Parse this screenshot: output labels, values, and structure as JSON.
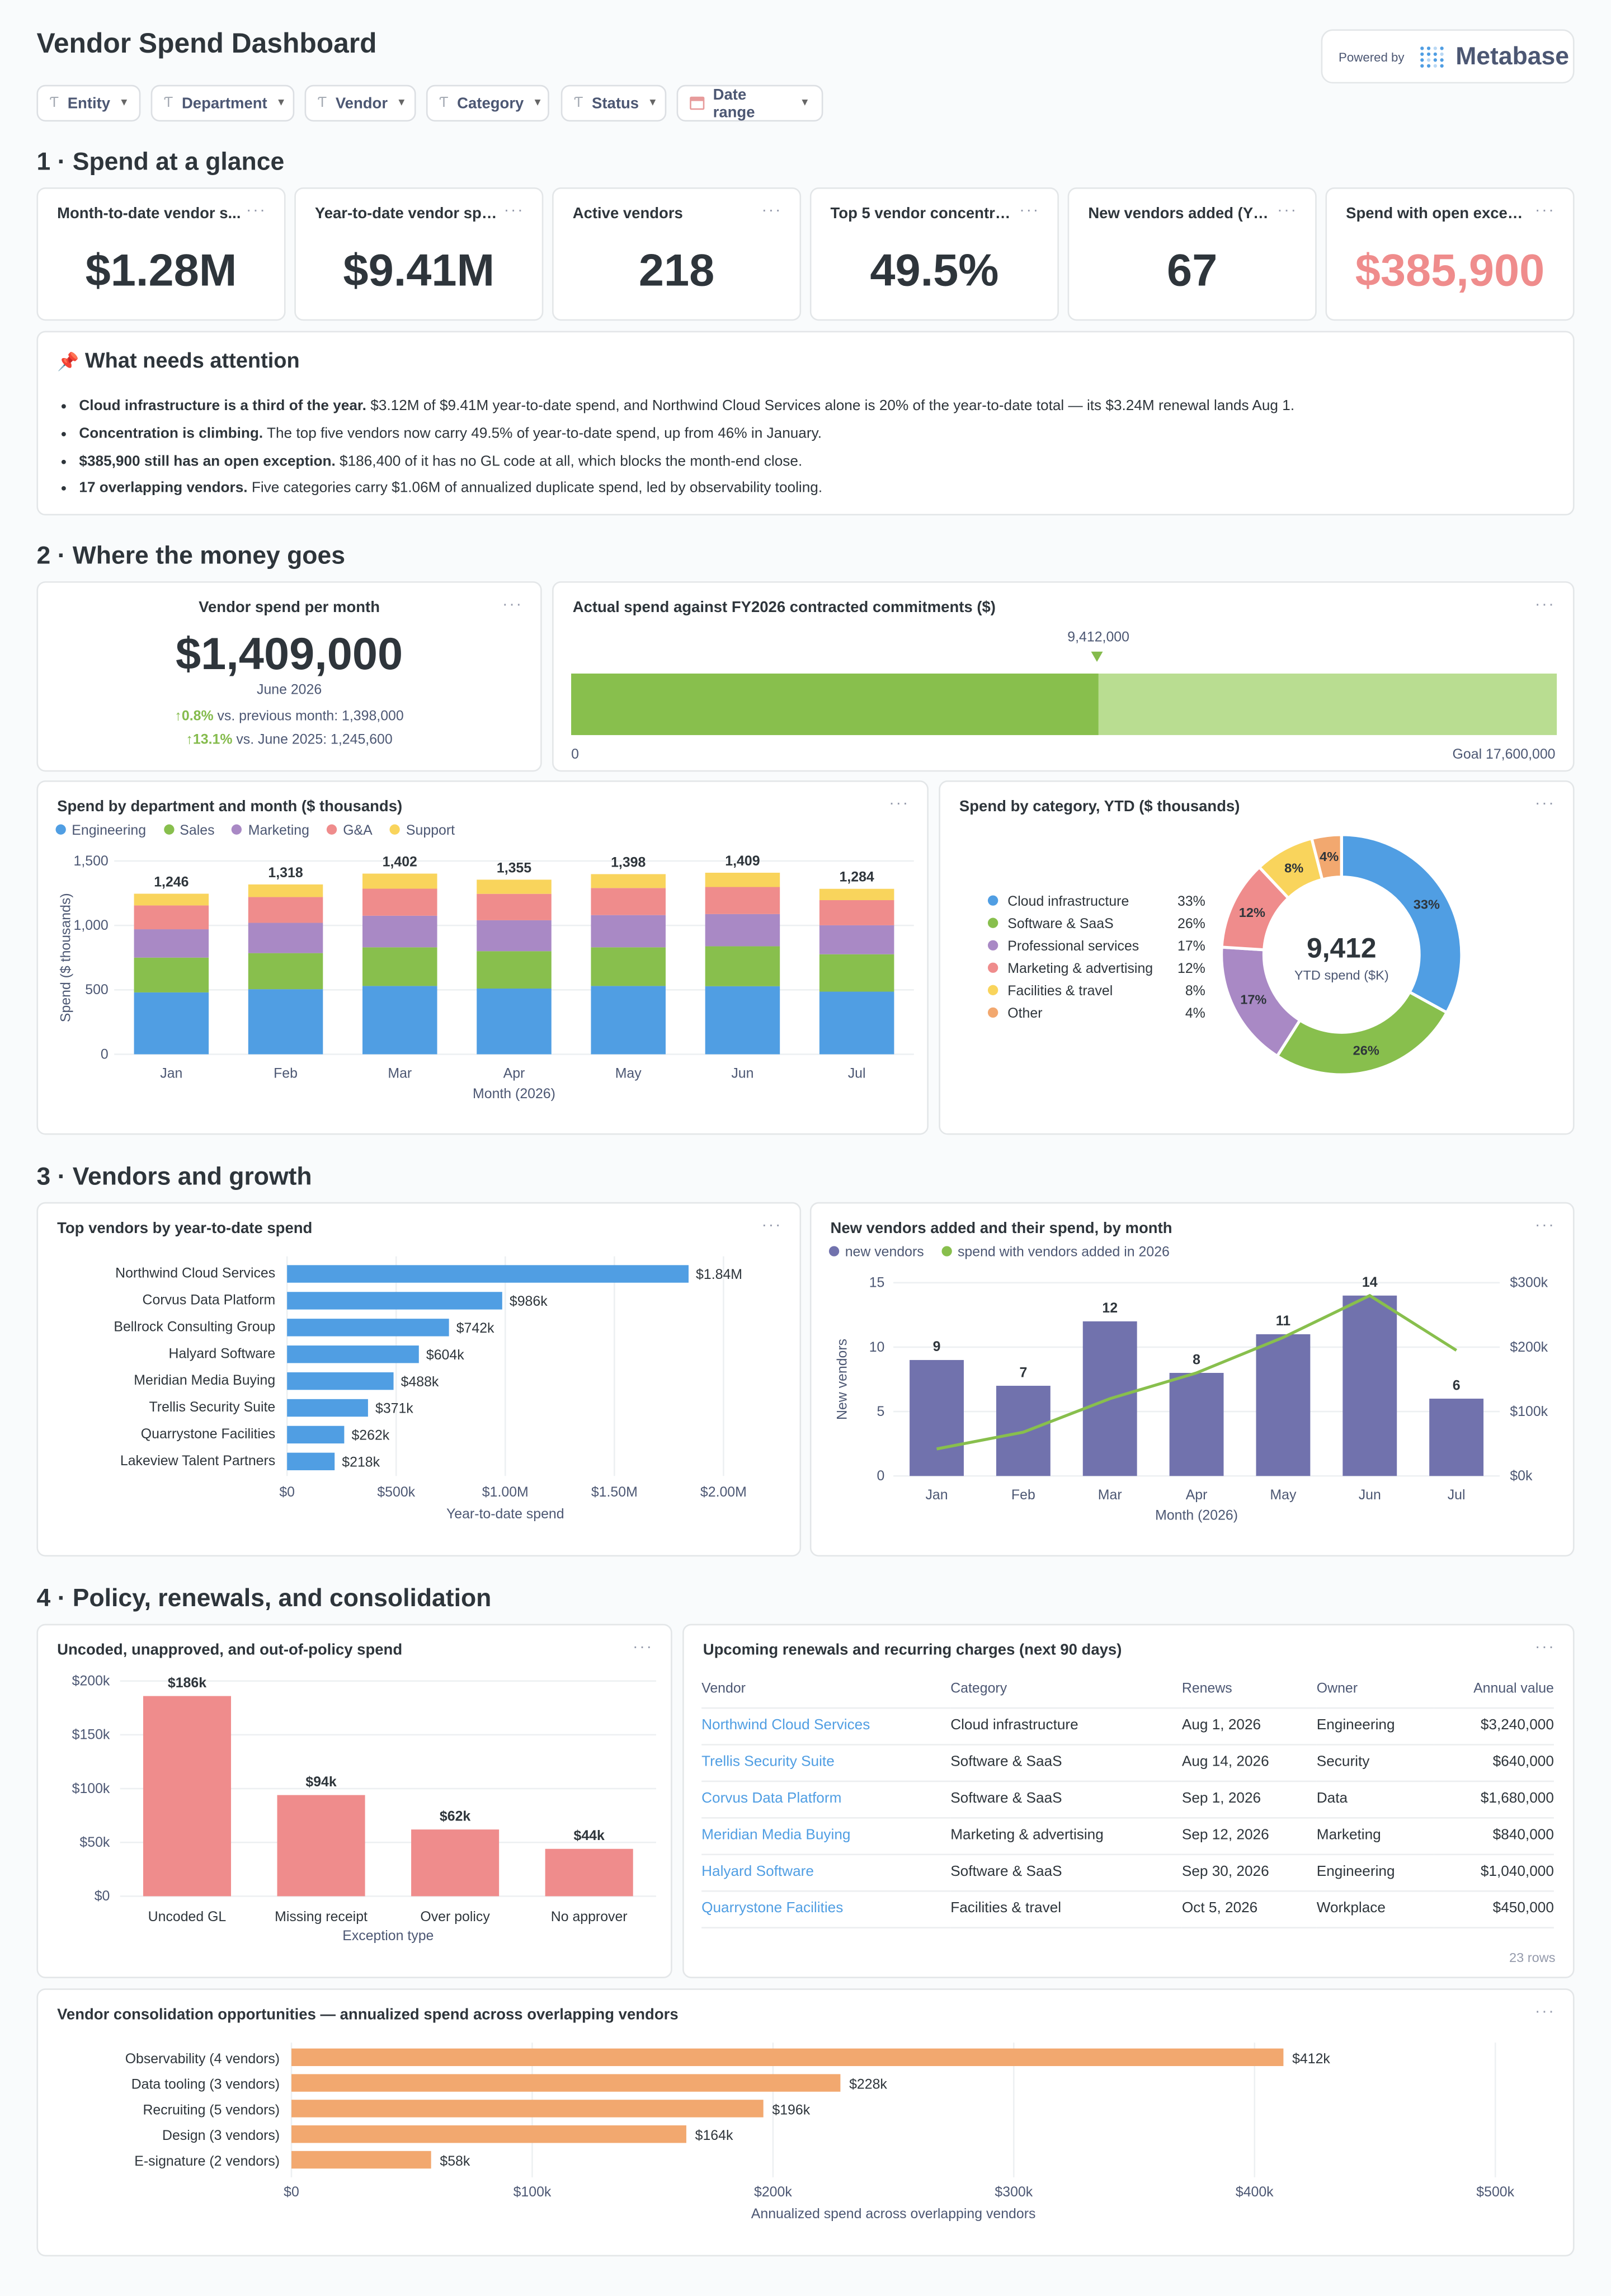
{
  "title": "Vendor Spend Dashboard",
  "powered": {
    "label": "Powered by",
    "brand": "Metabase"
  },
  "filters": [
    "Entity",
    "Department",
    "Vendor",
    "Category",
    "Status",
    "Date range"
  ],
  "sections": [
    "1 · Spend at a glance",
    "2 · Where the money goes",
    "3 · Vendors and growth",
    "4 · Policy, renewals, and consolidation"
  ],
  "kpis": [
    {
      "title": "Month-to-date vendor s...",
      "value": "$1.28M"
    },
    {
      "title": "Year-to-date vendor spe...",
      "value": "$9.41M"
    },
    {
      "title": "Active vendors",
      "value": "218"
    },
    {
      "title": "Top 5 vendor concentrat...",
      "value": "49.5%"
    },
    {
      "title": "New vendors added (YTD)",
      "value": "67"
    },
    {
      "title": "Spend with open excepti...",
      "value": "$385,900"
    }
  ],
  "attention": {
    "icon": "📌",
    "title": "What needs attention",
    "bullets": [
      {
        "bold": "Cloud infrastructure is a third of the year.",
        "text": " $3.12M of $9.41M year-to-date spend, and Northwind Cloud Services alone is 20% of the year-to-date total — its $3.24M renewal lands Aug 1."
      },
      {
        "bold": "Concentration is climbing.",
        "text": " The top five vendors now carry 49.5% of year-to-date spend, up from 46% in January."
      },
      {
        "bold": "$385,900 still has an open exception.",
        "text": " $186,400 of it has no GL code at all, which blocks the month-end close."
      },
      {
        "bold": "17 overlapping vendors.",
        "text": " Five categories carry $1.06M of annualized duplicate spend, led by observability tooling."
      }
    ]
  },
  "monthly": {
    "title": "Vendor spend per month",
    "value": "$1,409,000",
    "period": "June 2026",
    "cmp1_pct": "0.8%",
    "cmp1_text": " vs. previous month: 1,398,000",
    "cmp2_pct": "13.1%",
    "cmp2_text": " vs. June 2025: 1,245,600"
  },
  "progress": {
    "title": "Actual spend against FY2026 contracted commitments ($)",
    "value_label": "9,412,000",
    "value": 9412000,
    "goal": 17600000,
    "start_label": "0",
    "goal_label": "Goal 17,600,000"
  },
  "kebab": "···",
  "colors": {
    "engineering": "#509ee3",
    "sales": "#88bf4d",
    "marketing": "#a989c5",
    "ga": "#ef8c8c",
    "support": "#f9d45c",
    "other": "#f2a86f",
    "purple": "#7172ad",
    "coral": "#ef8c8c",
    "orange": "#f2a86f"
  },
  "chart_data": [
    {
      "id": "dept",
      "type": "bar",
      "stacked": true,
      "title": "Spend by department and month ($ thousands)",
      "categories": [
        "Jan",
        "Feb",
        "Mar",
        "Apr",
        "May",
        "Jun",
        "Jul"
      ],
      "series": [
        {
          "name": "Engineering",
          "values": [
            480,
            505,
            530,
            510,
            530,
            528,
            486
          ]
        },
        {
          "name": "Sales",
          "values": [
            270,
            280,
            300,
            290,
            300,
            310,
            290
          ]
        },
        {
          "name": "Marketing",
          "values": [
            220,
            235,
            245,
            240,
            250,
            250,
            225
          ]
        },
        {
          "name": "G&A",
          "values": [
            185,
            200,
            210,
            205,
            210,
            210,
            195
          ]
        },
        {
          "name": "Support",
          "values": [
            91,
            98,
            117,
            110,
            108,
            111,
            88
          ]
        }
      ],
      "totals": [
        "1,246",
        "1,318",
        "1,402",
        "1,355",
        "1,398",
        "1,409",
        "1,284"
      ],
      "ylabel": "Spend ($ thousands)",
      "xlabel": "Month (2026)",
      "yticks": [
        "0",
        "500",
        "1,000",
        "1,500"
      ],
      "ylim": [
        0,
        1500
      ]
    },
    {
      "id": "category",
      "type": "pie",
      "donut": true,
      "title": "Spend by category, YTD ($ thousands)",
      "center_value": "9,412",
      "center_label": "YTD spend ($K)",
      "labels": [
        "Cloud infrastructure",
        "Software & SaaS",
        "Professional services",
        "Marketing & advertising",
        "Facilities & travel",
        "Other"
      ],
      "values": [
        33,
        26,
        17,
        12,
        8,
        4
      ],
      "pct_labels": [
        "33%",
        "26%",
        "17%",
        "12%",
        "8%",
        "4%"
      ]
    },
    {
      "id": "topvendors",
      "type": "bar",
      "orientation": "horizontal",
      "title": "Top vendors by year-to-date spend",
      "categories": [
        "Northwind Cloud Services",
        "Corvus Data Platform",
        "Bellrock Consulting Group",
        "Halyard Software",
        "Meridian Media Buying",
        "Trellis Security Suite",
        "Quarrystone Facilities",
        "Lakeview Talent Partners"
      ],
      "values": [
        1840000,
        986000,
        742000,
        604000,
        488000,
        371000,
        262000,
        218000
      ],
      "value_labels": [
        "$1.84M",
        "$986k",
        "$742k",
        "$604k",
        "$488k",
        "$371k",
        "$262k",
        "$218k"
      ],
      "xticks": [
        "$0",
        "$500k",
        "$1.00M",
        "$1.50M",
        "$2.00M"
      ],
      "xlim": [
        0,
        2000000
      ],
      "xlabel": "Year-to-date spend"
    },
    {
      "id": "newvendors",
      "type": "bar",
      "title": "New vendors added and their spend, by month",
      "categories": [
        "Jan",
        "Feb",
        "Mar",
        "Apr",
        "May",
        "Jun",
        "Jul"
      ],
      "series": [
        {
          "name": "new vendors",
          "type": "bar",
          "values": [
            9,
            7,
            12,
            8,
            11,
            14,
            6
          ]
        },
        {
          "name": "spend with vendors added in 2026",
          "type": "line",
          "values": [
            42000,
            68000,
            120000,
            160000,
            215000,
            280000,
            195000
          ]
        }
      ],
      "ylabel": "New vendors",
      "xlabel": "Month (2026)",
      "yticks": [
        "0",
        "5",
        "10",
        "15"
      ],
      "ylim": [
        0,
        15
      ],
      "y2ticks": [
        "$0k",
        "$100k",
        "$200k",
        "$300k"
      ],
      "y2lim": [
        0,
        300000
      ]
    },
    {
      "id": "exceptions",
      "type": "bar",
      "title": "Uncoded, unapproved, and out-of-policy spend",
      "categories": [
        "Uncoded GL",
        "Missing receipt",
        "Over policy",
        "No approver"
      ],
      "values": [
        186000,
        94000,
        62000,
        44000
      ],
      "value_labels": [
        "$186k",
        "$94k",
        "$62k",
        "$44k"
      ],
      "yticks": [
        "$0",
        "$50k",
        "$100k",
        "$150k",
        "$200k"
      ],
      "ylim": [
        0,
        200000
      ],
      "xlabel": "Exception type"
    },
    {
      "id": "consolidation",
      "type": "bar",
      "orientation": "horizontal",
      "title": "Vendor consolidation opportunities — annualized spend across overlapping vendors",
      "categories": [
        "Observability (4 vendors)",
        "Data tooling (3 vendors)",
        "Recruiting (5 vendors)",
        "Design (3 vendors)",
        "E-signature (2 vendors)"
      ],
      "values": [
        412000,
        228000,
        196000,
        164000,
        58000
      ],
      "value_labels": [
        "$412k",
        "$228k",
        "$196k",
        "$164k",
        "$58k"
      ],
      "xticks": [
        "$0",
        "$100k",
        "$200k",
        "$300k",
        "$400k",
        "$500k"
      ],
      "xlim": [
        0,
        500000
      ],
      "xlabel": "Annualized spend across overlapping vendors"
    }
  ],
  "renewals": {
    "title": "Upcoming renewals and recurring charges (next 90 days)",
    "headers": [
      "Vendor",
      "Category",
      "Renews",
      "Owner",
      "Annual value"
    ],
    "rows": [
      [
        "Northwind Cloud Services",
        "Cloud infrastructure",
        "Aug 1, 2026",
        "Engineering",
        "$3,240,000"
      ],
      [
        "Trellis Security Suite",
        "Software & SaaS",
        "Aug 14, 2026",
        "Security",
        "$640,000"
      ],
      [
        "Corvus Data Platform",
        "Software & SaaS",
        "Sep 1, 2026",
        "Data",
        "$1,680,000"
      ],
      [
        "Meridian Media Buying",
        "Marketing & advertising",
        "Sep 12, 2026",
        "Marketing",
        "$840,000"
      ],
      [
        "Halyard Software",
        "Software & SaaS",
        "Sep 30, 2026",
        "Engineering",
        "$1,040,000"
      ],
      [
        "Quarrystone Facilities",
        "Facilities & travel",
        "Oct 5, 2026",
        "Workplace",
        "$450,000"
      ]
    ],
    "row_count": "23 rows"
  }
}
